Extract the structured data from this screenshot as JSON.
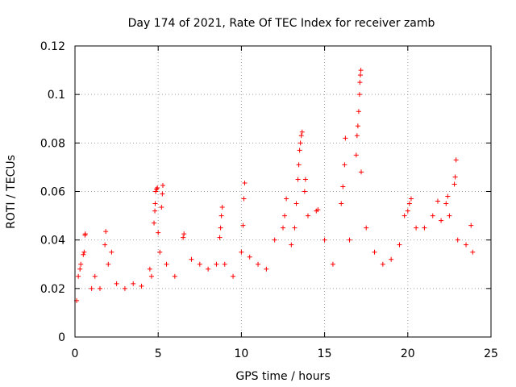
{
  "chart_data": {
    "type": "scatter",
    "title": "Day 174 of 2021, Rate Of TEC Index for receiver zamb",
    "xlabel": "GPS time / hours",
    "ylabel": "ROTI / TECUs",
    "xlim": [
      0,
      25
    ],
    "ylim": [
      0,
      0.12
    ],
    "x_ticks": [
      0,
      5,
      10,
      15,
      20,
      25
    ],
    "x_tick_labels": [
      "0",
      "5",
      "10",
      "15",
      "20",
      "25"
    ],
    "y_ticks": [
      0,
      0.02,
      0.04,
      0.06,
      0.08,
      0.1,
      0.12
    ],
    "y_tick_labels": [
      "0",
      "0.02",
      "0.04",
      "0.06",
      "0.08",
      "0.1",
      "0.12"
    ],
    "grid": true,
    "marker": "+",
    "color": "#ff0000",
    "series": [
      {
        "points": [
          [
            0.1,
            0.015
          ],
          [
            0.2,
            0.025
          ],
          [
            0.3,
            0.028
          ],
          [
            0.35,
            0.03
          ],
          [
            0.5,
            0.034
          ],
          [
            0.55,
            0.035
          ],
          [
            0.6,
            0.042
          ],
          [
            0.62,
            0.0425
          ],
          [
            1.0,
            0.02
          ],
          [
            1.2,
            0.025
          ],
          [
            1.5,
            0.02
          ],
          [
            1.8,
            0.038
          ],
          [
            1.85,
            0.0435
          ],
          [
            2.0,
            0.03
          ],
          [
            2.2,
            0.035
          ],
          [
            2.5,
            0.022
          ],
          [
            3.0,
            0.02
          ],
          [
            3.5,
            0.022
          ],
          [
            4.0,
            0.021
          ],
          [
            4.5,
            0.028
          ],
          [
            4.6,
            0.025
          ],
          [
            4.75,
            0.047
          ],
          [
            4.8,
            0.052
          ],
          [
            4.82,
            0.055
          ],
          [
            4.85,
            0.06
          ],
          [
            4.9,
            0.061
          ],
          [
            4.95,
            0.0615
          ],
          [
            5.0,
            0.043
          ],
          [
            5.1,
            0.035
          ],
          [
            5.2,
            0.0535
          ],
          [
            5.25,
            0.059
          ],
          [
            5.28,
            0.0625
          ],
          [
            5.5,
            0.03
          ],
          [
            6.0,
            0.025
          ],
          [
            6.5,
            0.041
          ],
          [
            6.55,
            0.0425
          ],
          [
            7.0,
            0.032
          ],
          [
            7.5,
            0.03
          ],
          [
            8.0,
            0.028
          ],
          [
            8.5,
            0.03
          ],
          [
            8.7,
            0.041
          ],
          [
            8.75,
            0.045
          ],
          [
            8.8,
            0.05
          ],
          [
            8.85,
            0.0535
          ],
          [
            9.0,
            0.03
          ],
          [
            9.5,
            0.025
          ],
          [
            10.0,
            0.035
          ],
          [
            10.1,
            0.046
          ],
          [
            10.15,
            0.057
          ],
          [
            10.2,
            0.0635
          ],
          [
            10.5,
            0.033
          ],
          [
            11.0,
            0.03
          ],
          [
            11.5,
            0.028
          ],
          [
            12.0,
            0.04
          ],
          [
            12.5,
            0.045
          ],
          [
            12.6,
            0.05
          ],
          [
            12.7,
            0.057
          ],
          [
            13.0,
            0.038
          ],
          [
            13.2,
            0.045
          ],
          [
            13.3,
            0.055
          ],
          [
            13.4,
            0.065
          ],
          [
            13.45,
            0.071
          ],
          [
            13.5,
            0.077
          ],
          [
            13.55,
            0.08
          ],
          [
            13.6,
            0.083
          ],
          [
            13.65,
            0.0845
          ],
          [
            13.8,
            0.06
          ],
          [
            13.85,
            0.065
          ],
          [
            14.0,
            0.05
          ],
          [
            14.5,
            0.052
          ],
          [
            14.6,
            0.0525
          ],
          [
            15.0,
            0.04
          ],
          [
            15.5,
            0.03
          ],
          [
            16.0,
            0.055
          ],
          [
            16.1,
            0.062
          ],
          [
            16.2,
            0.071
          ],
          [
            16.25,
            0.082
          ],
          [
            16.5,
            0.04
          ],
          [
            16.9,
            0.075
          ],
          [
            16.95,
            0.083
          ],
          [
            17.0,
            0.087
          ],
          [
            17.05,
            0.093
          ],
          [
            17.1,
            0.1
          ],
          [
            17.12,
            0.105
          ],
          [
            17.15,
            0.108
          ],
          [
            17.18,
            0.11
          ],
          [
            17.2,
            0.068
          ],
          [
            17.5,
            0.045
          ],
          [
            18.0,
            0.035
          ],
          [
            18.5,
            0.03
          ],
          [
            19.0,
            0.032
          ],
          [
            19.5,
            0.038
          ],
          [
            19.8,
            0.05
          ],
          [
            20.0,
            0.052
          ],
          [
            20.1,
            0.055
          ],
          [
            20.2,
            0.057
          ],
          [
            20.5,
            0.045
          ],
          [
            21.0,
            0.045
          ],
          [
            21.5,
            0.05
          ],
          [
            21.8,
            0.056
          ],
          [
            22.0,
            0.048
          ],
          [
            22.3,
            0.055
          ],
          [
            22.4,
            0.058
          ],
          [
            22.5,
            0.05
          ],
          [
            22.8,
            0.063
          ],
          [
            22.85,
            0.066
          ],
          [
            22.9,
            0.073
          ],
          [
            23.0,
            0.04
          ],
          [
            23.5,
            0.038
          ],
          [
            23.8,
            0.046
          ],
          [
            23.9,
            0.035
          ]
        ]
      }
    ]
  }
}
